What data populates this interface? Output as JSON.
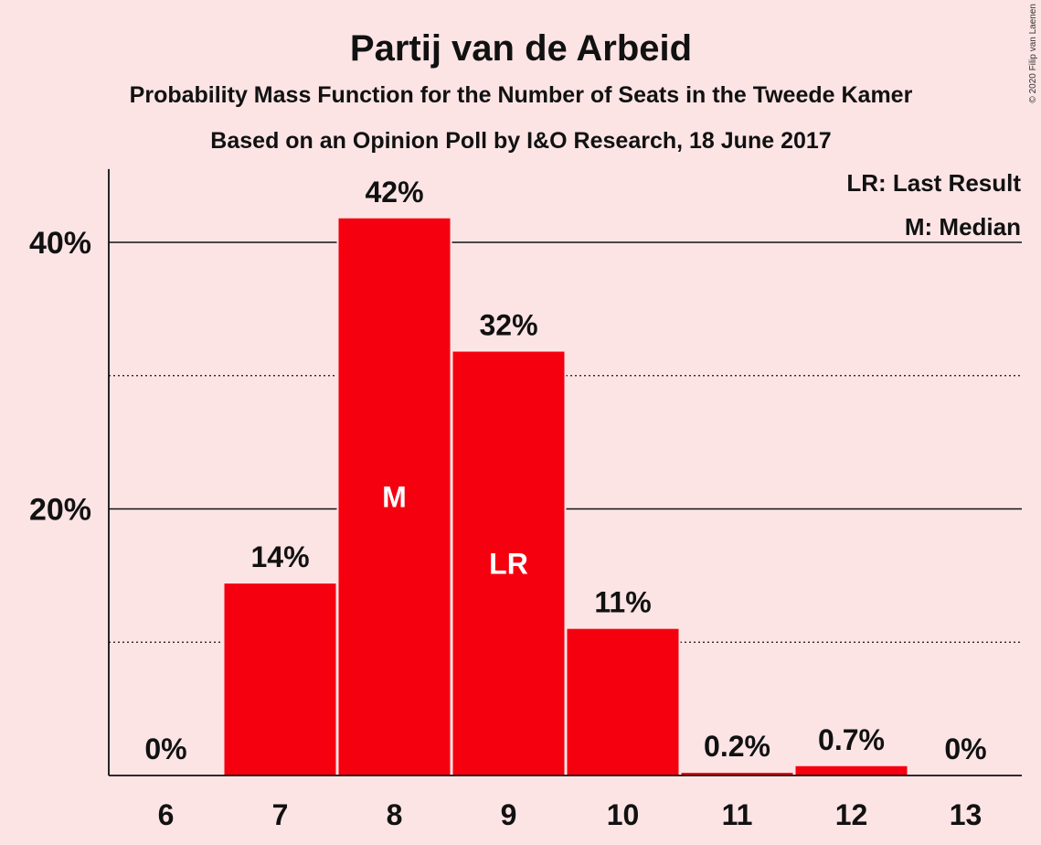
{
  "chart_data": {
    "type": "bar",
    "title": "Partij van de Arbeid",
    "subtitle": "Probability Mass Function for the Number of Seats in the Tweede Kamer",
    "subtitle2": "Based on an Opinion Poll by I&O Research, 18 June 2017",
    "categories": [
      "6",
      "7",
      "8",
      "9",
      "10",
      "11",
      "12",
      "13"
    ],
    "values": [
      0,
      14.4,
      41.8,
      31.8,
      11.0,
      0.2,
      0.7,
      0
    ],
    "value_labels": [
      "0%",
      "14%",
      "42%",
      "32%",
      "11%",
      "0.2%",
      "0.7%",
      "0%"
    ],
    "bar_markers": [
      "",
      "",
      "M",
      "LR",
      "",
      "",
      "",
      ""
    ],
    "yticks": [
      20,
      40
    ],
    "ytick_labels": [
      "20%",
      "40%"
    ],
    "minor_gridlines": [
      10,
      30
    ],
    "ylim": [
      0,
      45.5
    ],
    "legend": [
      "LR: Last Result",
      "M: Median"
    ],
    "legend_position": "top-right",
    "bar_color": "#f5000f",
    "copyright": "© 2020 Filip van Laenen"
  }
}
